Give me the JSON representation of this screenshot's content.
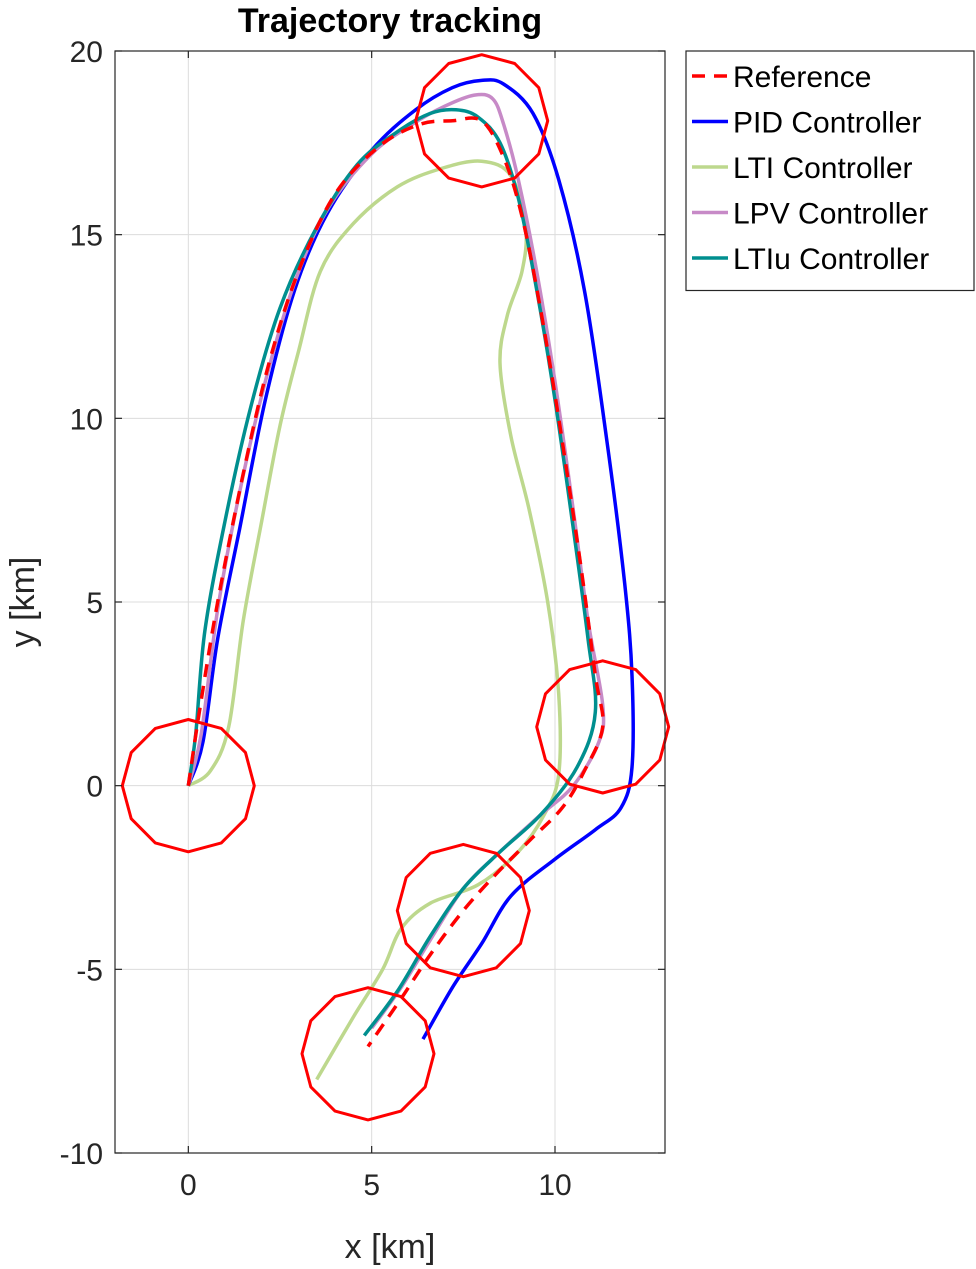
{
  "chart_data": {
    "type": "line",
    "title": "Trajectory tracking",
    "xlabel": "x [km]",
    "ylabel": "y [km]",
    "xlim": [
      -2,
      13
    ],
    "ylim": [
      -10,
      20
    ],
    "xticks": [
      0,
      5,
      10
    ],
    "yticks": [
      -10,
      -5,
      0,
      5,
      10,
      15,
      20
    ],
    "xtick_labels": [
      "0",
      "5",
      "10"
    ],
    "ytick_labels": [
      "-10",
      "-5",
      "0",
      "5",
      "10",
      "15",
      "20"
    ],
    "grid": true,
    "legend_position": "outside top-right",
    "waypoints": {
      "radius": 1.8,
      "color": "#ff0000",
      "centers": [
        [
          0,
          0
        ],
        [
          8,
          18.1
        ],
        [
          11.3,
          1.6
        ],
        [
          7.5,
          -3.4
        ],
        [
          4.9,
          -7.3
        ]
      ]
    },
    "series": [
      {
        "name": "Reference",
        "color": "#ff0000",
        "style": "dashed",
        "points": [
          [
            0,
            0
          ],
          [
            0.3,
            2
          ],
          [
            0.8,
            5
          ],
          [
            1.5,
            8.5
          ],
          [
            2.2,
            11.5
          ],
          [
            3,
            14
          ],
          [
            4,
            16.1
          ],
          [
            5.2,
            17.4
          ],
          [
            6.3,
            18
          ],
          [
            7.2,
            18.1
          ],
          [
            8,
            18.1
          ],
          [
            8.6,
            17.1
          ],
          [
            9.1,
            15.5
          ],
          [
            9.6,
            13
          ],
          [
            10.1,
            10
          ],
          [
            10.7,
            6
          ],
          [
            11.1,
            3
          ],
          [
            11.3,
            1.6
          ],
          [
            10.8,
            0.4
          ],
          [
            10.2,
            -0.6
          ],
          [
            9.3,
            -1.5
          ],
          [
            8.4,
            -2.4
          ],
          [
            7.5,
            -3.4
          ],
          [
            6.6,
            -4.6
          ],
          [
            5.8,
            -5.8
          ],
          [
            4.9,
            -7.1
          ]
        ]
      },
      {
        "name": "PID Controller",
        "color": "#0000ff",
        "style": "solid",
        "points": [
          [
            0,
            0
          ],
          [
            0.4,
            1.2
          ],
          [
            0.8,
            4
          ],
          [
            1.4,
            7
          ],
          [
            2.1,
            10.5
          ],
          [
            2.9,
            13.5
          ],
          [
            3.8,
            15.6
          ],
          [
            5,
            17.3
          ],
          [
            6.2,
            18.4
          ],
          [
            7.2,
            19
          ],
          [
            8,
            19.2
          ],
          [
            8.6,
            19.1
          ],
          [
            9.4,
            18.3
          ],
          [
            10.1,
            16.5
          ],
          [
            10.8,
            13.5
          ],
          [
            11.4,
            9.5
          ],
          [
            11.9,
            5.5
          ],
          [
            12.1,
            3
          ],
          [
            12.1,
            0.5
          ],
          [
            11.8,
            -0.6
          ],
          [
            11.1,
            -1.2
          ],
          [
            10,
            -2
          ],
          [
            8.8,
            -3
          ],
          [
            8,
            -4.3
          ],
          [
            7.2,
            -5.5
          ],
          [
            6.4,
            -6.9
          ]
        ]
      },
      {
        "name": "LTI Controller",
        "color": "#bdd88d",
        "style": "solid",
        "points": [
          [
            0,
            0
          ],
          [
            0.6,
            0.4
          ],
          [
            1.1,
            1.6
          ],
          [
            1.5,
            4.5
          ],
          [
            2,
            7.2
          ],
          [
            2.5,
            9.8
          ],
          [
            3,
            11.8
          ],
          [
            3.6,
            14
          ],
          [
            4.5,
            15.3
          ],
          [
            5.7,
            16.3
          ],
          [
            6.9,
            16.8
          ],
          [
            8,
            17
          ],
          [
            8.8,
            16.6
          ],
          [
            9.2,
            15.2
          ],
          [
            9.1,
            14
          ],
          [
            8.7,
            12.8
          ],
          [
            8.5,
            11.5
          ],
          [
            8.8,
            9.5
          ],
          [
            9.3,
            7.5
          ],
          [
            9.8,
            5
          ],
          [
            10.1,
            2.5
          ],
          [
            10.1,
            0.3
          ],
          [
            9.7,
            -0.8
          ],
          [
            9,
            -1.8
          ],
          [
            7.9,
            -2.7
          ],
          [
            6.6,
            -3.2
          ],
          [
            5.8,
            -3.9
          ],
          [
            5.3,
            -5
          ],
          [
            4.5,
            -6.3
          ],
          [
            3.5,
            -8
          ]
        ]
      },
      {
        "name": "LPV Controller",
        "color": "#c78ac7",
        "style": "solid",
        "points": [
          [
            0,
            0
          ],
          [
            0.35,
            1.4
          ],
          [
            0.8,
            4.8
          ],
          [
            1.4,
            8
          ],
          [
            2.1,
            11
          ],
          [
            2.9,
            13.7
          ],
          [
            3.8,
            15.7
          ],
          [
            5,
            17.2
          ],
          [
            6.1,
            18
          ],
          [
            7,
            18.5
          ],
          [
            7.8,
            18.8
          ],
          [
            8.3,
            18.7
          ],
          [
            8.6,
            18
          ],
          [
            9,
            16.5
          ],
          [
            9.5,
            14
          ],
          [
            10,
            11
          ],
          [
            10.5,
            7.5
          ],
          [
            10.9,
            4.5
          ],
          [
            11.3,
            2.2
          ],
          [
            11.2,
            1.2
          ],
          [
            10.5,
            0
          ],
          [
            9.6,
            -0.8
          ],
          [
            8.5,
            -1.8
          ],
          [
            7.5,
            -2.8
          ],
          [
            6.6,
            -4.2
          ],
          [
            5.8,
            -5.5
          ],
          [
            5,
            -6.6
          ]
        ]
      },
      {
        "name": "LTIu Controller",
        "color": "#008f8f",
        "style": "solid",
        "points": [
          [
            0,
            0
          ],
          [
            0.2,
            1.4
          ],
          [
            0.45,
            4.2
          ],
          [
            1,
            7.2
          ],
          [
            1.7,
            10.3
          ],
          [
            2.5,
            13
          ],
          [
            3.5,
            15.2
          ],
          [
            4.6,
            16.9
          ],
          [
            5.7,
            17.8
          ],
          [
            6.6,
            18.3
          ],
          [
            7.3,
            18.4
          ],
          [
            7.9,
            18.2
          ],
          [
            8.5,
            17.5
          ],
          [
            9,
            16
          ],
          [
            9.5,
            13.5
          ],
          [
            10,
            10.5
          ],
          [
            10.5,
            7
          ],
          [
            10.9,
            4
          ],
          [
            11.1,
            2
          ],
          [
            10.6,
            0.5
          ],
          [
            9.6,
            -0.8
          ],
          [
            8.5,
            -1.8
          ],
          [
            7.5,
            -2.8
          ],
          [
            6.6,
            -4.1
          ],
          [
            5.7,
            -5.6
          ],
          [
            4.8,
            -6.8
          ]
        ]
      }
    ]
  }
}
